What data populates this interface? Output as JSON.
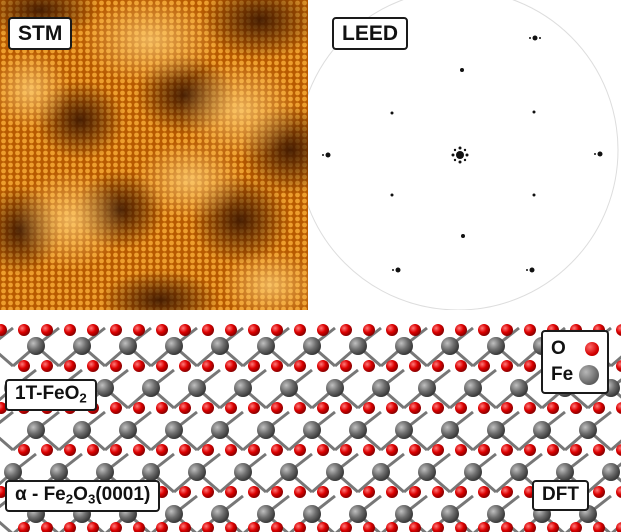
{
  "panels": {
    "stm": {
      "label": "STM"
    },
    "leed": {
      "label": "LEED"
    },
    "dft": {
      "label": "DFT",
      "layer_top": {
        "text": "1T-FeO",
        "sub": "2"
      },
      "layer_bottom": {
        "prefix": "α - Fe",
        "sub1": "2",
        "mid": "O",
        "sub2": "3",
        "suffix": "(0001)"
      },
      "legend": [
        {
          "symbol": "O",
          "color": "#e00000"
        },
        {
          "symbol": "Fe",
          "color": "#666666"
        }
      ]
    }
  }
}
